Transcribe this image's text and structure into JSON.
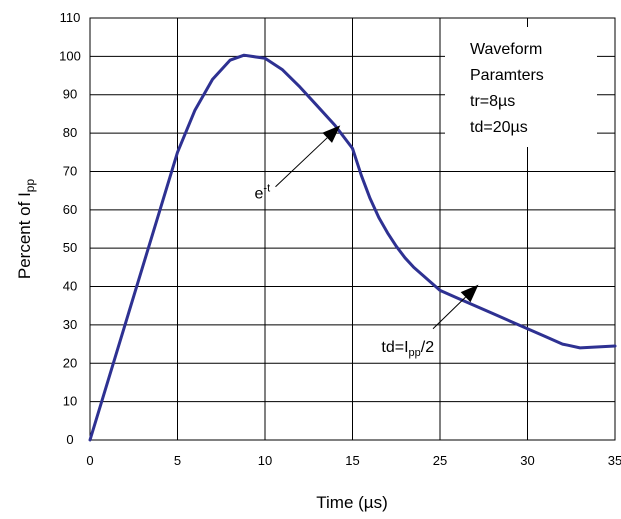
{
  "chart_data": {
    "type": "line",
    "xlabel": "Time (µs)",
    "ylabel": {
      "main": "Percent of I",
      "sub": "pp"
    },
    "x_ticks": [
      0,
      5,
      10,
      15,
      25,
      30,
      35
    ],
    "y_ticks": [
      0,
      10,
      20,
      30,
      40,
      50,
      60,
      70,
      80,
      90,
      100,
      110
    ],
    "xlim": [
      0,
      35
    ],
    "ylim": [
      0,
      110
    ],
    "grid": true,
    "series": [
      {
        "color": "#2e3192",
        "points": [
          [
            0,
            0
          ],
          [
            2,
            30
          ],
          [
            4,
            60
          ],
          [
            5,
            75
          ],
          [
            6,
            86
          ],
          [
            7,
            94
          ],
          [
            8,
            99
          ],
          [
            8.8,
            100.3
          ],
          [
            10,
            99.5
          ],
          [
            11,
            96.5
          ],
          [
            12,
            92
          ],
          [
            13,
            87
          ],
          [
            14,
            82
          ],
          [
            15,
            76
          ],
          [
            16,
            69
          ],
          [
            17,
            63
          ],
          [
            18,
            58
          ],
          [
            19,
            54
          ],
          [
            20,
            50.5
          ],
          [
            21,
            47.5
          ],
          [
            22,
            45
          ],
          [
            23,
            43
          ],
          [
            24,
            41
          ],
          [
            25,
            39
          ],
          [
            26,
            37
          ],
          [
            27,
            35
          ],
          [
            28,
            33
          ],
          [
            29,
            31
          ],
          [
            30,
            29
          ],
          [
            31,
            27
          ],
          [
            32,
            25
          ],
          [
            32.3,
            24.7
          ],
          [
            33,
            24
          ],
          [
            35,
            24.5
          ]
        ]
      }
    ],
    "legend_box": {
      "lines": [
        "Waveform",
        "Paramters",
        "tr=8µs",
        "td=20µs"
      ],
      "placement": "top-right"
    },
    "annotations": [
      {
        "name": "exp-annotation",
        "text_main": "e",
        "text_sup": "-t",
        "text_xy": [
          9.4,
          63
        ],
        "tail_xy": [
          10.6,
          66
        ],
        "head_xy": [
          14.3,
          82
        ]
      },
      {
        "name": "td-annotation",
        "text_main": "td=I",
        "text_sub": "pp",
        "text_tail": "/2",
        "text_xy": [
          18.3,
          23
        ],
        "tail_xy": [
          24.2,
          29
        ],
        "head_xy": [
          27.2,
          40.5
        ]
      }
    ]
  }
}
